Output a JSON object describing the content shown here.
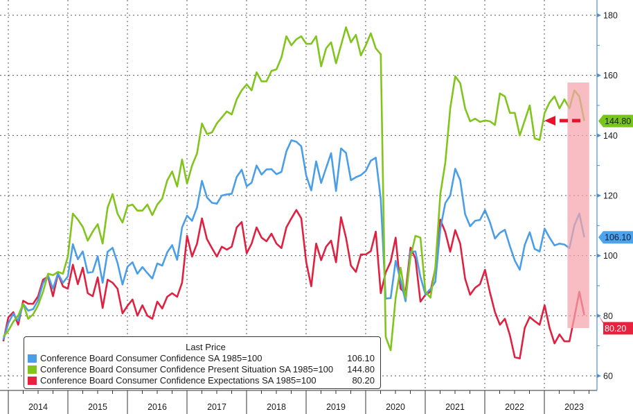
{
  "chart_data": {
    "type": "line",
    "title": "",
    "xlabel": "",
    "ylabel": "",
    "x": [
      "2013-11",
      "2013-12",
      "2014-01",
      "2014-02",
      "2014-03",
      "2014-04",
      "2014-05",
      "2014-06",
      "2014-07",
      "2014-08",
      "2014-09",
      "2014-10",
      "2014-11",
      "2014-12",
      "2015-01",
      "2015-02",
      "2015-03",
      "2015-04",
      "2015-05",
      "2015-06",
      "2015-07",
      "2015-08",
      "2015-09",
      "2015-10",
      "2015-11",
      "2015-12",
      "2016-01",
      "2016-02",
      "2016-03",
      "2016-04",
      "2016-05",
      "2016-06",
      "2016-07",
      "2016-08",
      "2016-09",
      "2016-10",
      "2016-11",
      "2016-12",
      "2017-01",
      "2017-02",
      "2017-03",
      "2017-04",
      "2017-05",
      "2017-06",
      "2017-07",
      "2017-08",
      "2017-09",
      "2017-10",
      "2017-11",
      "2017-12",
      "2018-01",
      "2018-02",
      "2018-03",
      "2018-04",
      "2018-05",
      "2018-06",
      "2018-07",
      "2018-08",
      "2018-09",
      "2018-10",
      "2018-11",
      "2018-12",
      "2019-01",
      "2019-02",
      "2019-03",
      "2019-04",
      "2019-05",
      "2019-06",
      "2019-07",
      "2019-08",
      "2019-09",
      "2019-10",
      "2019-11",
      "2019-12",
      "2020-01",
      "2020-02",
      "2020-03",
      "2020-04",
      "2020-05",
      "2020-06",
      "2020-07",
      "2020-08",
      "2020-09",
      "2020-10",
      "2020-11",
      "2020-12",
      "2021-01",
      "2021-02",
      "2021-03",
      "2021-04",
      "2021-05",
      "2021-06",
      "2021-07",
      "2021-08",
      "2021-09",
      "2021-10",
      "2021-11",
      "2021-12",
      "2022-01",
      "2022-02",
      "2022-03",
      "2022-04",
      "2022-05",
      "2022-06",
      "2022-07",
      "2022-08",
      "2022-09",
      "2022-10",
      "2022-11",
      "2022-12",
      "2023-01",
      "2023-02",
      "2023-03",
      "2023-04",
      "2023-05",
      "2023-06",
      "2023-07",
      "2023-08"
    ],
    "series": [
      {
        "name": "Conference Board Consumer Confidence SA 1985=100",
        "color": "#4a9ee8",
        "last": "106.10",
        "values": [
          72.0,
          77.5,
          80.7,
          78.3,
          83.9,
          81.7,
          82.2,
          85.2,
          90.9,
          93.4,
          89.0,
          94.1,
          91.0,
          93.1,
          103.8,
          98.8,
          101.4,
          94.3,
          94.6,
          99.8,
          91.0,
          101.3,
          102.6,
          97.6,
          90.4,
          96.3,
          97.8,
          94.0,
          96.2,
          94.2,
          92.4,
          97.4,
          96.7,
          101.1,
          103.5,
          98.6,
          109.4,
          113.3,
          111.6,
          116.1,
          124.9,
          119.4,
          117.6,
          117.3,
          120.0,
          120.4,
          120.6,
          126.2,
          128.6,
          123.1,
          124.3,
          130.0,
          127.0,
          128.7,
          128.8,
          127.1,
          127.9,
          134.7,
          138.4,
          137.9,
          136.4,
          126.6,
          121.7,
          131.4,
          124.2,
          129.2,
          134.1,
          121.5,
          135.7,
          134.2,
          125.1,
          126.1,
          126.8,
          128.2,
          131.6,
          132.6,
          118.8,
          85.7,
          85.9,
          98.3,
          91.7,
          84.8,
          101.3,
          101.4,
          92.9,
          87.1,
          88.9,
          91.3,
          109.0,
          117.5,
          120.0,
          128.9,
          125.1,
          113.8,
          109.8,
          111.6,
          111.9,
          115.2,
          111.1,
          105.7,
          107.6,
          108.6,
          103.2,
          98.4,
          95.3,
          103.6,
          107.8,
          102.2,
          101.4,
          109.0,
          106.0,
          103.4,
          104.0,
          103.7,
          102.5,
          110.1,
          114.0,
          106.1
        ]
      },
      {
        "name": "Conference Board Consumer Confidence Present Situation SA 1985=100",
        "color": "#80c41c",
        "last": "144.80",
        "values": [
          73,
          75,
          78,
          80,
          84,
          79,
          80.5,
          83.5,
          88,
          94,
          93.5,
          94.6,
          94,
          99.7,
          114,
          112,
          109.6,
          105,
          108,
          110.5,
          104,
          116,
          120.5,
          114,
          111,
          116.5,
          117,
          115,
          115,
          117,
          113.5,
          117,
          119,
          125,
          128,
          123,
          132,
          124,
          130,
          134,
          144,
          140.5,
          141,
          144,
          146,
          148,
          147,
          152,
          155,
          157,
          155,
          161,
          158,
          158,
          161.5,
          162,
          166,
          173,
          170,
          172,
          173,
          170.5,
          170.5,
          173,
          163,
          169,
          171,
          164,
          170,
          176,
          171,
          173.5,
          166.6,
          170,
          174,
          169,
          167,
          73,
          68.5,
          86,
          96,
          86,
          99.7,
          106.6,
          106,
          88,
          86,
          96,
          120.5,
          131,
          149,
          159.7,
          157.4,
          149,
          144.7,
          145.6,
          144.5,
          145,
          144.7,
          143.5,
          154,
          153,
          147.5,
          147.5,
          140,
          145,
          150,
          139,
          138.5,
          147.5,
          151,
          153,
          149,
          152,
          149,
          155,
          153,
          144.8
        ]
      },
      {
        "name": "Conference Board Consumer Confidence Expectations SA 1985=100",
        "color": "#e02040",
        "last": "80.20",
        "values": [
          71.5,
          79.4,
          81.2,
          77,
          85,
          84,
          84,
          86.5,
          92,
          93,
          86.5,
          94,
          89.8,
          89,
          97,
          90.5,
          96,
          87.5,
          86.5,
          92.8,
          82.6,
          92,
          91,
          89,
          80.8,
          83.3,
          85.4,
          80,
          83.5,
          80,
          79,
          84.7,
          82.4,
          86.3,
          87.5,
          86.3,
          91,
          106.6,
          99.7,
          104,
          112.4,
          105.5,
          102.5,
          99.7,
          103,
          102,
          103,
          109.4,
          111.2,
          100.8,
          104,
          109.4,
          106,
          104.8,
          107.3,
          104,
          102.5,
          109.4,
          112.4,
          115.2,
          112.4,
          97.8,
          89.8,
          104,
          98.5,
          103,
          105,
          97.8,
          112.8,
          106,
          96.7,
          94.6,
          100.4,
          100.4,
          101.5,
          108,
          87.5,
          94.4,
          98,
          106,
          89,
          87.5,
          102.7,
          99,
          84.7,
          87,
          88,
          95.8,
          112,
          107.8,
          101.3,
          108.5,
          104,
          92.3,
          87,
          89.3,
          90.5,
          95.3,
          87.7,
          81.2,
          77,
          79,
          73.6,
          66.2,
          65.8,
          76,
          79.6,
          78.2,
          77,
          83.5,
          76,
          70.8,
          73.8,
          71.5,
          71.5,
          79.6,
          88,
          80.2
        ]
      }
    ],
    "y_ticks": [
      "60",
      "80",
      "100",
      "120",
      "140",
      "160",
      "180"
    ],
    "ylim": [
      56,
      186
    ],
    "y_axis_side": "right",
    "x_ticks": [
      "2014",
      "2015",
      "2016",
      "2017",
      "2018",
      "2019",
      "2020",
      "2021",
      "2022",
      "2023"
    ],
    "grid": true,
    "legend": {
      "placement": "bottom-left",
      "title": "Last Price"
    },
    "highlight": {
      "from": "2023-06",
      "to": "2023-08",
      "color": "#f4a3aa"
    },
    "arrow": {
      "color": "#e8132b",
      "direction": "left",
      "level": 144.8
    }
  }
}
